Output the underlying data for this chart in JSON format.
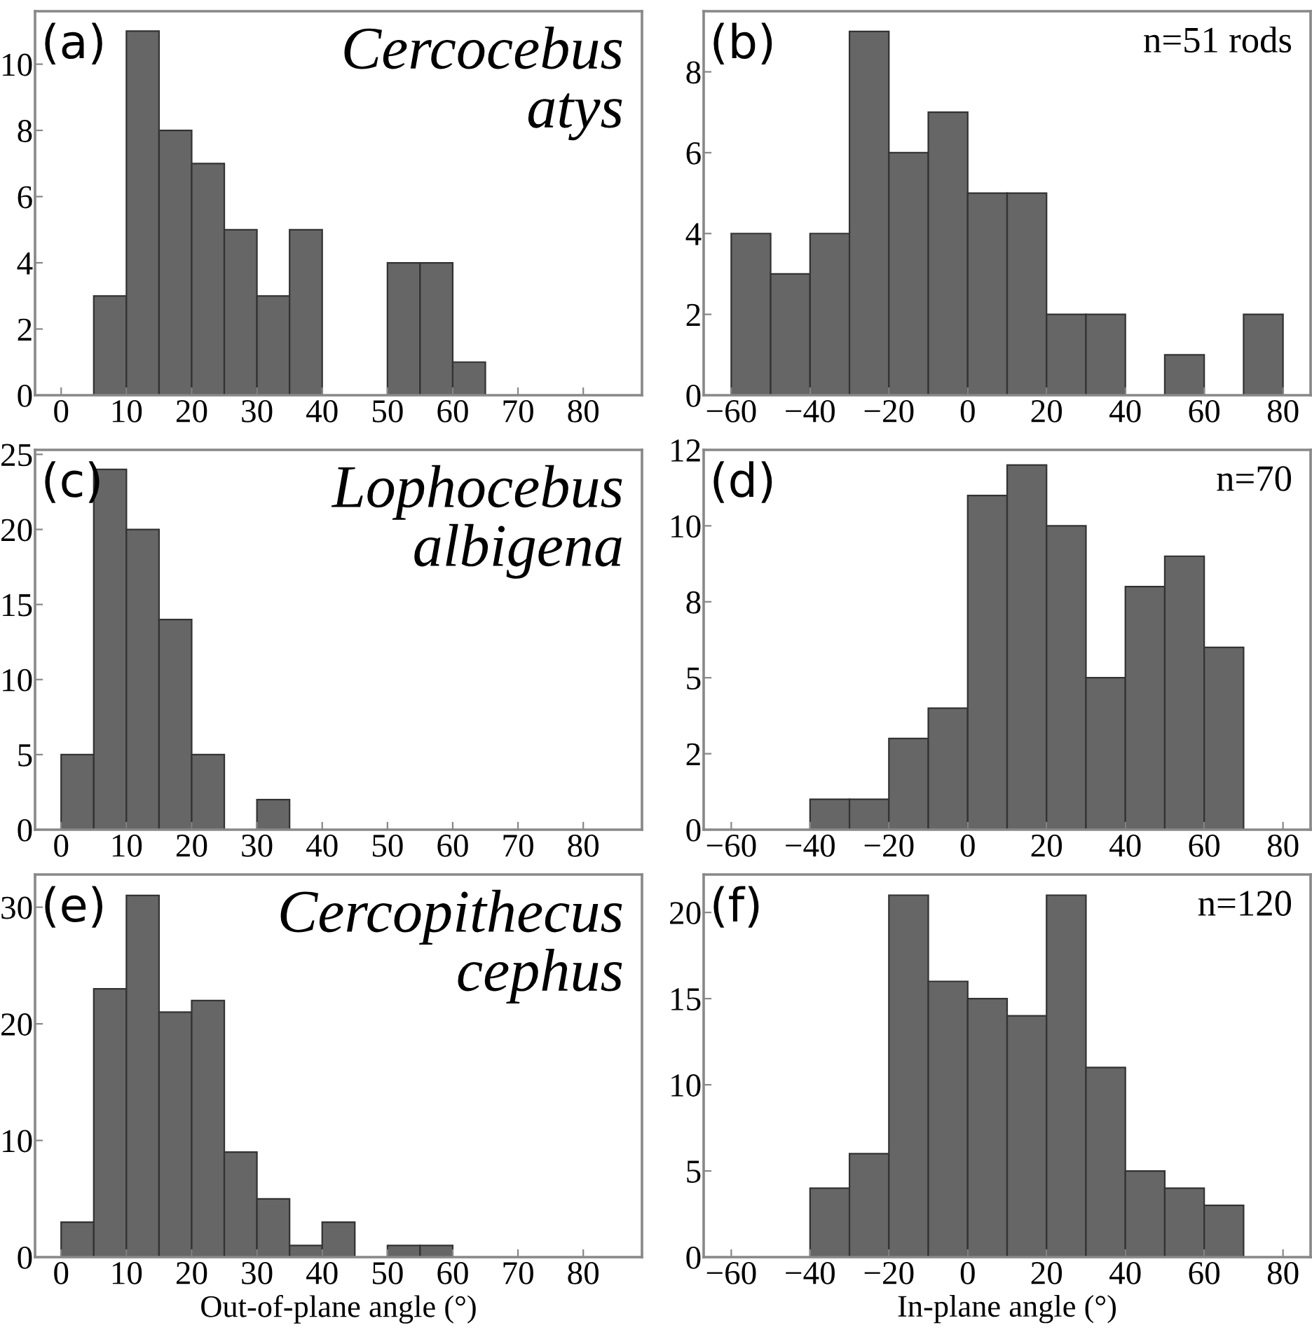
{
  "chart_data": [
    {
      "type": "histogram",
      "annotations": [
        "(a)",
        "Cercocebus\natys"
      ],
      "bins": [
        0,
        5,
        10,
        15,
        20,
        25,
        30,
        35,
        40,
        45,
        50,
        55,
        60,
        65,
        70,
        75,
        80,
        85
      ],
      "values": [
        0,
        3,
        11,
        8,
        7,
        5,
        3,
        5,
        0,
        0,
        4,
        4,
        1,
        0,
        0,
        0,
        0
      ],
      "color": "#666666",
      "xlim": [
        -4,
        89
      ],
      "xticks": [
        0,
        10,
        20,
        30,
        40,
        50,
        60,
        70,
        80
      ],
      "ylim": [
        0,
        11.6
      ],
      "yticks": [
        0,
        2,
        4,
        6,
        8,
        10
      ]
    },
    {
      "type": "histogram",
      "annotations": [
        "(b)",
        "n=51 rods"
      ],
      "bins": [
        -60,
        -50,
        -40,
        -30,
        -20,
        -10,
        0,
        10,
        20,
        30,
        40,
        50,
        60,
        70,
        80
      ],
      "values": [
        4,
        3,
        4,
        9,
        6,
        7,
        5,
        5,
        2,
        2,
        0,
        1,
        0,
        2
      ],
      "color": "#666666",
      "xlim": [
        -67,
        87
      ],
      "xticks": [
        -60,
        -40,
        -20,
        0,
        20,
        40,
        60,
        80
      ],
      "ylim": [
        0,
        9.5
      ],
      "yticks": [
        0,
        2,
        4,
        6,
        8
      ]
    },
    {
      "type": "histogram",
      "annotations": [
        "(c)",
        "Lophocebus\nalbigena"
      ],
      "bins": [
        0,
        5,
        10,
        15,
        20,
        25,
        30,
        35,
        40,
        45,
        50,
        55,
        60,
        65,
        70,
        75,
        80,
        85
      ],
      "values": [
        5,
        24,
        20,
        14,
        5,
        0,
        2,
        0,
        0,
        0,
        0,
        0,
        0,
        0,
        0,
        0,
        0
      ],
      "color": "#666666",
      "xlim": [
        -4,
        89
      ],
      "xticks": [
        0,
        10,
        20,
        30,
        40,
        50,
        60,
        70,
        80
      ],
      "ylim": [
        0,
        25.3
      ],
      "yticks": [
        0,
        5,
        10,
        15,
        20,
        25
      ]
    },
    {
      "type": "histogram",
      "annotations": [
        "(d)",
        "n=70"
      ],
      "bins": [
        -60,
        -50,
        -40,
        -30,
        -20,
        -10,
        0,
        10,
        20,
        30,
        40,
        50,
        60,
        70,
        80
      ],
      "values": [
        0,
        0,
        1,
        1,
        3,
        4,
        11,
        12,
        10,
        5,
        8,
        9,
        6,
        0
      ],
      "color": "#666666",
      "xlim": [
        -67,
        87
      ],
      "xticks": [
        -60,
        -40,
        -20,
        0,
        20,
        40,
        60,
        80
      ],
      "ylim": [
        0,
        12.5
      ],
      "yticks": [
        0,
        {
          "value": 2.5,
          "label": "2"
        },
        5,
        {
          "value": 7.5,
          "label": "8"
        },
        10,
        {
          "value": 12.5,
          "label": "12"
        }
      ]
    },
    {
      "type": "histogram",
      "xlabel": "Out-of-plane angle (°)",
      "annotations": [
        "(e)",
        "Cercopithecus\ncephus"
      ],
      "bins": [
        0,
        5,
        10,
        15,
        20,
        25,
        30,
        35,
        40,
        45,
        50,
        55,
        60,
        65,
        70,
        75,
        80,
        85
      ],
      "values": [
        3,
        23,
        31,
        21,
        22,
        9,
        5,
        1,
        3,
        0,
        1,
        1,
        0,
        0,
        0,
        0,
        0
      ],
      "color": "#666666",
      "xlim": [
        -4,
        89
      ],
      "xticks": [
        0,
        10,
        20,
        30,
        40,
        50,
        60,
        70,
        80
      ],
      "ylim": [
        0,
        32.8
      ],
      "yticks": [
        0,
        10,
        20,
        30
      ]
    },
    {
      "type": "histogram",
      "xlabel": "In-plane angle (°)",
      "annotations": [
        "(f)",
        "n=120"
      ],
      "bins": [
        -60,
        -50,
        -40,
        -30,
        -20,
        -10,
        0,
        10,
        20,
        30,
        40,
        50,
        60,
        70,
        80
      ],
      "values": [
        0,
        0,
        4,
        6,
        21,
        16,
        15,
        14,
        21,
        11,
        5,
        4,
        3,
        0
      ],
      "color": "#666666",
      "xlim": [
        -67,
        87
      ],
      "xticks": [
        -60,
        -40,
        -20,
        0,
        20,
        40,
        60,
        80
      ],
      "ylim": [
        0,
        22.2
      ],
      "yticks": [
        0,
        5,
        10,
        15,
        20
      ]
    }
  ]
}
